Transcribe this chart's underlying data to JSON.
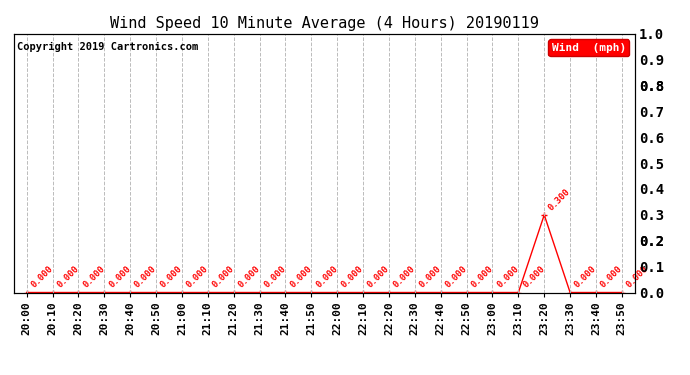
{
  "title": "Wind Speed 10 Minute Average (4 Hours) 20190119",
  "copyright_text": "Copyright 2019 Cartronics.com",
  "legend_label": "Wind  (mph)",
  "legend_bg": "#ff0000",
  "legend_fg": "#ffffff",
  "line_color": "#ff0000",
  "marker_color": "#ff0000",
  "grid_color": "#bbbbbb",
  "background_color": "#ffffff",
  "x_labels": [
    "20:00",
    "20:10",
    "20:20",
    "20:30",
    "20:40",
    "20:50",
    "21:00",
    "21:10",
    "21:20",
    "21:30",
    "21:40",
    "21:50",
    "22:00",
    "22:10",
    "22:20",
    "22:30",
    "22:40",
    "22:50",
    "23:00",
    "23:10",
    "23:20",
    "23:30",
    "23:40",
    "23:50"
  ],
  "y_values": [
    0.0,
    0.0,
    0.0,
    0.0,
    0.0,
    0.0,
    0.0,
    0.0,
    0.0,
    0.0,
    0.0,
    0.0,
    0.0,
    0.0,
    0.0,
    0.0,
    0.0,
    0.0,
    0.0,
    0.0,
    0.3,
    0.0,
    0.0,
    0.0
  ],
  "ylim": [
    0.0,
    1.0
  ],
  "ytick_values": [
    0.0,
    0.1,
    0.2,
    0.2,
    0.3,
    0.4,
    0.5,
    0.6,
    0.7,
    0.8,
    0.8,
    0.9,
    1.0
  ],
  "ytick_labels": [
    "0.0",
    "0.1",
    "0.2",
    "0.2",
    "0.3",
    "0.4",
    "0.5",
    "0.6",
    "0.7",
    "0.8",
    "0.8",
    "0.9",
    "1.0"
  ],
  "title_fontsize": 11,
  "axis_fontsize": 8,
  "annotation_fontsize": 6.5,
  "copyright_fontsize": 7.5
}
